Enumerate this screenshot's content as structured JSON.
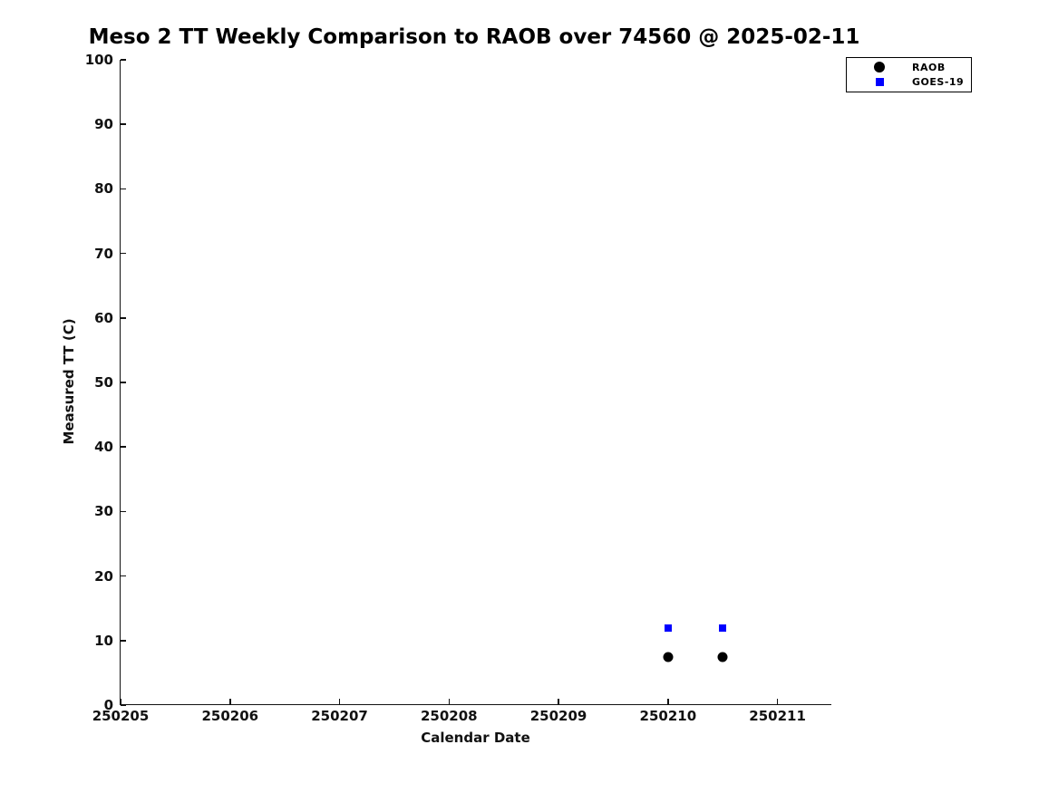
{
  "chart_data": {
    "type": "scatter",
    "title": "Meso 2 TT Weekly Comparison to RAOB over 74560 @ 2025-02-11",
    "xlabel": "Calendar Date",
    "ylabel": "Measured TT (C)",
    "xlim": [
      250205,
      250211.5
    ],
    "ylim": [
      0,
      100
    ],
    "x_ticks": [
      250205,
      250206,
      250207,
      250208,
      250209,
      250210,
      250211
    ],
    "x_tick_labels": [
      "250205",
      "250206",
      "250207",
      "250208",
      "250209",
      "250210",
      "250211"
    ],
    "y_ticks": [
      0,
      10,
      20,
      30,
      40,
      50,
      60,
      70,
      80,
      90,
      100
    ],
    "y_tick_labels": [
      "0",
      "10",
      "20",
      "30",
      "40",
      "50",
      "60",
      "70",
      "80",
      "90",
      "100"
    ],
    "grid": false,
    "legend_position": "top-right",
    "series": [
      {
        "name": "RAOB",
        "marker": "circle",
        "color": "#000000",
        "points": [
          {
            "x": 250210.0,
            "y": 7.5
          },
          {
            "x": 250210.5,
            "y": 7.5
          }
        ]
      },
      {
        "name": "GOES-19",
        "marker": "square",
        "color": "#0000ff",
        "points": [
          {
            "x": 250210.0,
            "y": 12.0
          },
          {
            "x": 250210.5,
            "y": 12.0
          }
        ]
      }
    ]
  },
  "colors": {
    "background": "#ffffff",
    "axis": "#111111",
    "text": "#000000",
    "raob": "#000000",
    "goes19": "#0000ff"
  }
}
